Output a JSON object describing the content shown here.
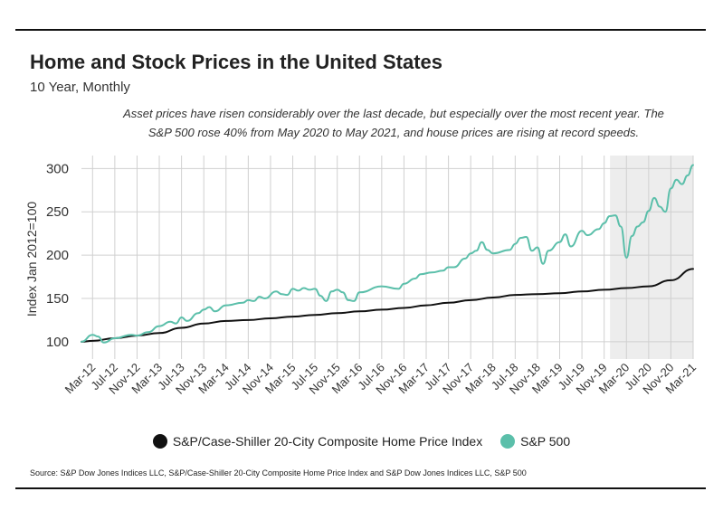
{
  "title": "Home and Stock Prices in the United States",
  "subtitle": "10 Year, Monthly",
  "annotation": "Asset prices have risen considerably over the last decade, but especially over the most recent year. The S&P 500 rose 40% from May 2020 to May 2021, and house prices are rising at record speeds.",
  "source": "Source: S&P Dow Jones Indices LLC, S&P/Case-Shiller 20-City Composite Home Price Index and S&P Dow Jones Indices LLC, S&P 500",
  "colors": {
    "home": "#111111",
    "sp500": "#5bbfaa",
    "highlight": "#ededed",
    "grid": "#d0d0d0"
  },
  "chart_data": {
    "type": "line",
    "title": "Home and Stock Prices in the United States",
    "subtitle": "10 Year, Monthly",
    "ylabel": "Index Jan 2012=100",
    "ylim": [
      80,
      315
    ],
    "yticks": [
      100,
      150,
      200,
      250,
      300
    ],
    "x_ticks": [
      "Mar-12",
      "Jul-12",
      "Nov-12",
      "Mar-13",
      "Jul-13",
      "Nov-13",
      "Mar-14",
      "Jul-14",
      "Nov-14",
      "Mar-15",
      "Jul-15",
      "Nov-15",
      "Mar-16",
      "Jul-16",
      "Nov-16",
      "Mar-17",
      "Jul-17",
      "Nov-17",
      "Mar-18",
      "Jul-18",
      "Nov-18",
      "Mar-19",
      "Jul-19",
      "Nov-19",
      "Mar-20",
      "Jul-20",
      "Nov-20",
      "Mar-21"
    ],
    "x_range": [
      "Jan-12",
      "Mar-21"
    ],
    "grid": true,
    "legend_position": "bottom",
    "highlight_period": [
      "Feb-20",
      "Mar-21"
    ],
    "series": [
      {
        "name": "S&P/Case-Shiller 20-City Composite Home Price Index",
        "color": "#111111",
        "points": [
          [
            "Jan-12",
            100
          ],
          [
            "Mar-12",
            101
          ],
          [
            "Jul-12",
            104
          ],
          [
            "Nov-12",
            107
          ],
          [
            "Mar-13",
            110
          ],
          [
            "Jul-13",
            116
          ],
          [
            "Nov-13",
            121
          ],
          [
            "Mar-14",
            124
          ],
          [
            "Jul-14",
            125
          ],
          [
            "Nov-14",
            127
          ],
          [
            "Mar-15",
            129
          ],
          [
            "Jul-15",
            131
          ],
          [
            "Nov-15",
            133
          ],
          [
            "Mar-16",
            135
          ],
          [
            "Jul-16",
            137
          ],
          [
            "Nov-16",
            139
          ],
          [
            "Mar-17",
            142
          ],
          [
            "Jul-17",
            145
          ],
          [
            "Nov-17",
            148
          ],
          [
            "Mar-18",
            151
          ],
          [
            "Jul-18",
            154
          ],
          [
            "Nov-18",
            155
          ],
          [
            "Mar-19",
            156
          ],
          [
            "Jul-19",
            158
          ],
          [
            "Nov-19",
            160
          ],
          [
            "Mar-20",
            162
          ],
          [
            "Jul-20",
            164
          ],
          [
            "Nov-20",
            171
          ],
          [
            "Mar-21",
            184
          ]
        ]
      },
      {
        "name": "S&P 500",
        "color": "#5bbfaa",
        "points": [
          [
            "Jan-12",
            100
          ],
          [
            "Mar-12",
            108
          ],
          [
            "Apr-12",
            106
          ],
          [
            "May-12",
            99
          ],
          [
            "Jul-12",
            104
          ],
          [
            "Oct-12",
            108
          ],
          [
            "Nov-12",
            107
          ],
          [
            "Jan-13",
            111
          ],
          [
            "Mar-13",
            118
          ],
          [
            "May-13",
            123
          ],
          [
            "Jun-13",
            121
          ],
          [
            "Jul-13",
            128
          ],
          [
            "Aug-13",
            124
          ],
          [
            "Oct-13",
            133
          ],
          [
            "Nov-13",
            137
          ],
          [
            "Dec-13",
            140
          ],
          [
            "Jan-14",
            135
          ],
          [
            "Mar-14",
            142
          ],
          [
            "Jun-14",
            145
          ],
          [
            "Jul-14",
            148
          ],
          [
            "Aug-14",
            147
          ],
          [
            "Sep-14",
            152
          ],
          [
            "Oct-14",
            150
          ],
          [
            "Dec-14",
            158
          ],
          [
            "Jan-15",
            155
          ],
          [
            "Feb-15",
            154
          ],
          [
            "Mar-15",
            161
          ],
          [
            "Apr-15",
            159
          ],
          [
            "May-15",
            162
          ],
          [
            "Jun-15",
            160
          ],
          [
            "Jul-15",
            161
          ],
          [
            "Aug-15",
            153
          ],
          [
            "Sep-15",
            147
          ],
          [
            "Oct-15",
            158
          ],
          [
            "Nov-15",
            160
          ],
          [
            "Dec-15",
            157
          ],
          [
            "Jan-16",
            148
          ],
          [
            "Feb-16",
            147
          ],
          [
            "Mar-16",
            157
          ],
          [
            "Jul-16",
            164
          ],
          [
            "Oct-16",
            161
          ],
          [
            "Nov-16",
            167
          ],
          [
            "Jan-17",
            173
          ],
          [
            "Feb-17",
            178
          ],
          [
            "Apr-17",
            180
          ],
          [
            "Jun-17",
            182
          ],
          [
            "Jul-17",
            186
          ],
          [
            "Aug-17",
            186
          ],
          [
            "Oct-17",
            196
          ],
          [
            "Nov-17",
            202
          ],
          [
            "Dec-17",
            205
          ],
          [
            "Jan-18",
            215
          ],
          [
            "Feb-18",
            206
          ],
          [
            "Mar-18",
            202
          ],
          [
            "Jun-18",
            206
          ],
          [
            "Jul-18",
            213
          ],
          [
            "Aug-18",
            220
          ],
          [
            "Sep-18",
            221
          ],
          [
            "Oct-18",
            205
          ],
          [
            "Nov-18",
            209
          ],
          [
            "Dec-18",
            190
          ],
          [
            "Jan-19",
            205
          ],
          [
            "Mar-19",
            215
          ],
          [
            "Apr-19",
            224
          ],
          [
            "May-19",
            210
          ],
          [
            "Jul-19",
            228
          ],
          [
            "Aug-19",
            223
          ],
          [
            "Oct-19",
            230
          ],
          [
            "Nov-19",
            237
          ],
          [
            "Dec-19",
            245
          ],
          [
            "Jan-20",
            246
          ],
          [
            "Feb-20",
            233
          ],
          [
            "Mar-20",
            197
          ],
          [
            "Apr-20",
            222
          ],
          [
            "May-20",
            233
          ],
          [
            "Jun-20",
            238
          ],
          [
            "Jul-20",
            251
          ],
          [
            "Aug-20",
            266
          ],
          [
            "Sep-20",
            256
          ],
          [
            "Oct-20",
            250
          ],
          [
            "Nov-20",
            277
          ],
          [
            "Dec-20",
            287
          ],
          [
            "Jan-21",
            282
          ],
          [
            "Feb-21",
            292
          ],
          [
            "Mar-21",
            304
          ]
        ]
      }
    ]
  }
}
